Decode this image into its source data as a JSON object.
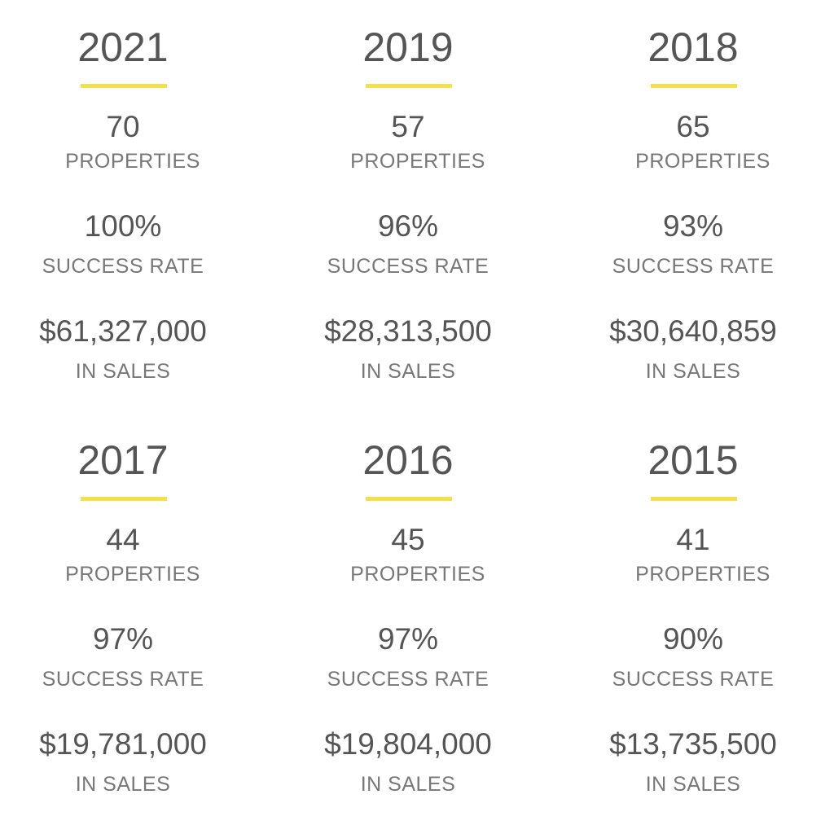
{
  "accent_color": "#f2e14b",
  "stats": [
    {
      "year": "2021",
      "properties": "70",
      "properties_label": "PROPERTIES",
      "success": "100%",
      "success_label": "SUCCESS RATE",
      "sales": "$61,327,000",
      "sales_label": "IN SALES"
    },
    {
      "year": "2019",
      "properties": "57",
      "properties_label": "PROPERTIES",
      "success": "96%",
      "success_label": "SUCCESS RATE",
      "sales": "$28,313,500",
      "sales_label": "IN SALES"
    },
    {
      "year": "2018",
      "properties": "65",
      "properties_label": "PROPERTIES",
      "success": "93%",
      "success_label": "SUCCESS RATE",
      "sales": "$30,640,859",
      "sales_label": "IN SALES"
    },
    {
      "year": "2017",
      "properties": "44",
      "properties_label": "PROPERTIES",
      "success": "97%",
      "success_label": "SUCCESS RATE",
      "sales": "$19,781,000",
      "sales_label": "IN SALES"
    },
    {
      "year": "2016",
      "properties": "45",
      "properties_label": "PROPERTIES",
      "success": "97%",
      "success_label": "SUCCESS RATE",
      "sales": "$19,804,000",
      "sales_label": "IN SALES"
    },
    {
      "year": "2015",
      "properties": "41",
      "properties_label": "PROPERTIES",
      "success": "90%",
      "success_label": "SUCCESS RATE",
      "sales": "$13,735,500",
      "sales_label": "IN SALES"
    }
  ]
}
